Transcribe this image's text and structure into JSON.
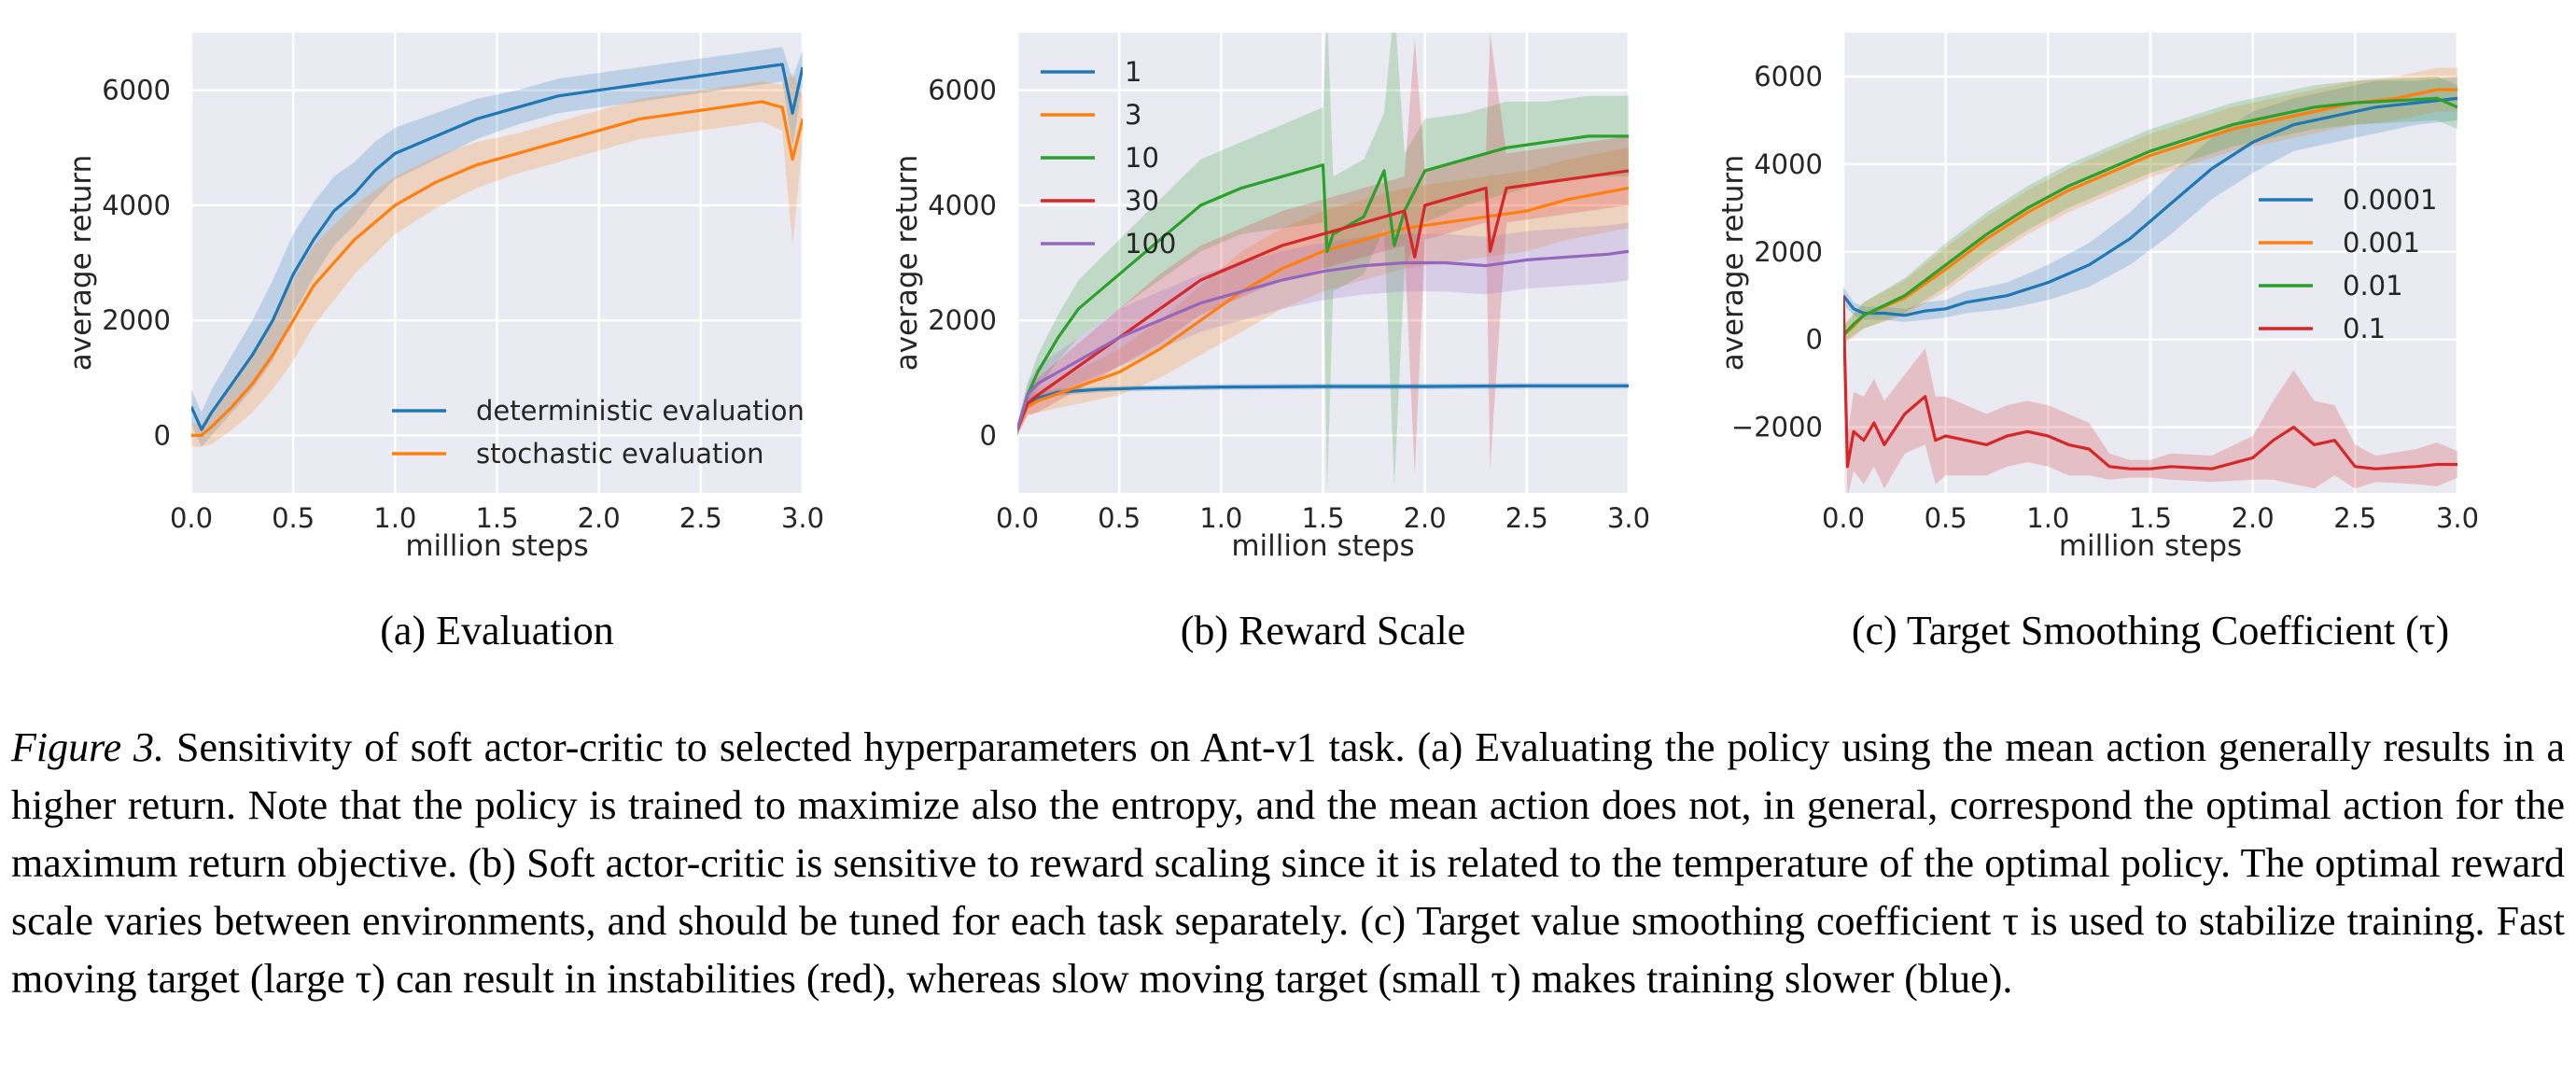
{
  "figure_label": "Figure 3.",
  "caption": {
    "text": "Sensitivity of soft actor-critic to selected hyperparameters on Ant-v1 task. (a) Evaluating the policy using the mean action generally results in a higher return. Note that the policy is trained to maximize also the entropy, and the mean action does not, in general, correspond the optimal action for the maximum return objective. (b) Soft actor-critic is sensitive to reward scaling since it is related to the temperature of the optimal policy. The optimal reward scale varies between environments, and should be tuned for each task separately. (c) Target value smoothing coefficient τ is used to stabilize training. Fast moving target (large τ) can result in instabilities (red), whereas slow moving target (small τ) makes training slower (blue)."
  },
  "colors": {
    "blue": "#1f77b4",
    "orange": "#ff7f0e",
    "green": "#2ca02c",
    "red": "#d62728",
    "purple": "#9467bd",
    "plot_bg": "#eaeaf2",
    "grid": "#ffffff"
  },
  "chart_data": [
    {
      "id": "a",
      "type": "line",
      "subcaption": "(a) Evaluation",
      "xlabel": "million steps",
      "ylabel": "average return",
      "xlim": [
        0,
        3.0
      ],
      "ylim": [
        -1000,
        7000
      ],
      "xticks": [
        0.0,
        0.5,
        1.0,
        1.5,
        2.0,
        2.5,
        3.0
      ],
      "xtick_labels": [
        "0.0",
        "0.5",
        "1.0",
        "1.5",
        "2.0",
        "2.5",
        "3.0"
      ],
      "yticks": [
        0,
        2000,
        4000,
        6000
      ],
      "ytick_labels": [
        "0",
        "2000",
        "4000",
        "6000"
      ],
      "grid": true,
      "legend_position": "lower-right",
      "series": [
        {
          "name": "deterministic evaluation",
          "color": "blue",
          "x": [
            0,
            0.05,
            0.1,
            0.2,
            0.3,
            0.4,
            0.5,
            0.6,
            0.7,
            0.8,
            0.9,
            1.0,
            1.2,
            1.4,
            1.6,
            1.8,
            2.0,
            2.2,
            2.4,
            2.6,
            2.8,
            2.9,
            2.95,
            3.0
          ],
          "y": [
            500,
            100,
            400,
            900,
            1400,
            2000,
            2800,
            3400,
            3900,
            4200,
            4600,
            4900,
            5200,
            5500,
            5700,
            5900,
            6000,
            6100,
            6200,
            6300,
            6400,
            6450,
            5600,
            6400
          ],
          "spread": [
            300,
            300,
            400,
            500,
            600,
            700,
            700,
            650,
            600,
            550,
            500,
            450,
            400,
            350,
            300,
            300,
            300,
            300,
            300,
            300,
            300,
            300,
            600,
            300
          ]
        },
        {
          "name": "stochastic evaluation",
          "color": "orange",
          "x": [
            0,
            0.05,
            0.1,
            0.2,
            0.3,
            0.4,
            0.5,
            0.6,
            0.7,
            0.8,
            0.9,
            1.0,
            1.2,
            1.4,
            1.6,
            1.8,
            2.0,
            2.2,
            2.4,
            2.6,
            2.8,
            2.9,
            2.95,
            3.0
          ],
          "y": [
            0,
            0,
            150,
            500,
            900,
            1400,
            2000,
            2600,
            3000,
            3400,
            3700,
            4000,
            4400,
            4700,
            4900,
            5100,
            5300,
            5500,
            5600,
            5700,
            5800,
            5700,
            4800,
            5500
          ],
          "spread": [
            200,
            200,
            300,
            400,
            500,
            600,
            700,
            700,
            650,
            600,
            550,
            500,
            450,
            400,
            350,
            350,
            350,
            350,
            350,
            350,
            350,
            400,
            1500,
            400
          ]
        }
      ]
    },
    {
      "id": "b",
      "type": "line",
      "subcaption": "(b) Reward Scale",
      "xlabel": "million steps",
      "ylabel": "average return",
      "xlim": [
        0,
        3.0
      ],
      "ylim": [
        -1000,
        7000
      ],
      "xticks": [
        0.0,
        0.5,
        1.0,
        1.5,
        2.0,
        2.5,
        3.0
      ],
      "xtick_labels": [
        "0.0",
        "0.5",
        "1.0",
        "1.5",
        "2.0",
        "2.5",
        "3.0"
      ],
      "yticks": [
        0,
        2000,
        4000,
        6000
      ],
      "ytick_labels": [
        "0",
        "2000",
        "4000",
        "6000"
      ],
      "grid": true,
      "legend_position": "upper-left",
      "series": [
        {
          "name": "1",
          "color": "blue",
          "x": [
            0,
            0.05,
            0.1,
            0.2,
            0.4,
            0.6,
            0.8,
            1.0,
            1.5,
            2.0,
            2.5,
            3.0
          ],
          "y": [
            100,
            550,
            650,
            750,
            800,
            820,
            830,
            840,
            850,
            850,
            860,
            860
          ],
          "spread": [
            100,
            100,
            80,
            60,
            50,
            50,
            50,
            50,
            50,
            50,
            50,
            50
          ]
        },
        {
          "name": "3",
          "color": "orange",
          "x": [
            0,
            0.05,
            0.1,
            0.3,
            0.5,
            0.7,
            0.9,
            1.1,
            1.3,
            1.5,
            1.7,
            1.9,
            2.1,
            2.3,
            2.5,
            2.7,
            3.0
          ],
          "y": [
            100,
            500,
            600,
            850,
            1100,
            1500,
            2000,
            2500,
            2900,
            3200,
            3400,
            3600,
            3700,
            3800,
            3900,
            4100,
            4300
          ],
          "spread": [
            100,
            150,
            200,
            300,
            400,
            500,
            600,
            700,
            700,
            700,
            700,
            700,
            700,
            700,
            700,
            700,
            700
          ]
        },
        {
          "name": "10",
          "color": "green",
          "x": [
            0,
            0.05,
            0.1,
            0.2,
            0.3,
            0.5,
            0.7,
            0.9,
            1.1,
            1.3,
            1.5,
            1.52,
            1.55,
            1.7,
            1.8,
            1.85,
            1.9,
            2.0,
            2.2,
            2.4,
            2.6,
            2.8,
            3.0
          ],
          "y": [
            100,
            700,
            1100,
            1700,
            2200,
            2800,
            3400,
            4000,
            4300,
            4500,
            4700,
            3200,
            3500,
            3800,
            4600,
            3300,
            3900,
            4600,
            4800,
            5000,
            5100,
            5200,
            5200
          ],
          "spread": [
            100,
            200,
            300,
            400,
            500,
            600,
            700,
            800,
            800,
            900,
            1000,
            4200,
            1000,
            1000,
            1000,
            4200,
            1000,
            900,
            800,
            800,
            700,
            700,
            700
          ]
        },
        {
          "name": "30",
          "color": "red",
          "x": [
            0,
            0.05,
            0.1,
            0.3,
            0.5,
            0.7,
            0.9,
            1.1,
            1.3,
            1.5,
            1.7,
            1.9,
            1.95,
            2.0,
            2.1,
            2.2,
            2.3,
            2.32,
            2.4,
            2.6,
            2.8,
            3.0
          ],
          "y": [
            100,
            550,
            700,
            1200,
            1700,
            2200,
            2700,
            3000,
            3300,
            3500,
            3700,
            3900,
            3100,
            4000,
            4100,
            4200,
            4300,
            3200,
            4300,
            4400,
            4500,
            4600
          ],
          "spread": [
            100,
            200,
            300,
            400,
            500,
            600,
            600,
            600,
            600,
            600,
            600,
            600,
            3800,
            600,
            600,
            600,
            600,
            3800,
            600,
            600,
            600,
            600
          ]
        },
        {
          "name": "100",
          "color": "purple",
          "x": [
            0,
            0.05,
            0.1,
            0.3,
            0.5,
            0.7,
            0.9,
            1.1,
            1.3,
            1.5,
            1.7,
            1.9,
            2.1,
            2.3,
            2.5,
            2.7,
            2.9,
            3.0
          ],
          "y": [
            100,
            700,
            900,
            1300,
            1700,
            2000,
            2300,
            2500,
            2700,
            2850,
            2950,
            3000,
            3000,
            2950,
            3050,
            3100,
            3150,
            3200
          ],
          "spread": [
            100,
            200,
            300,
            400,
            500,
            500,
            500,
            500,
            500,
            500,
            500,
            500,
            500,
            500,
            500,
            500,
            500,
            500
          ]
        }
      ]
    },
    {
      "id": "c",
      "type": "line",
      "subcaption": "(c) Target Smoothing Coefficient (τ)",
      "xlabel": "million steps",
      "ylabel": "average return",
      "xlim": [
        0,
        3.0
      ],
      "ylim": [
        -3500,
        7000
      ],
      "xticks": [
        0.0,
        0.5,
        1.0,
        1.5,
        2.0,
        2.5,
        3.0
      ],
      "xtick_labels": [
        "0.0",
        "0.5",
        "1.0",
        "1.5",
        "2.0",
        "2.5",
        "3.0"
      ],
      "yticks": [
        -2000,
        0,
        2000,
        4000,
        6000
      ],
      "ytick_labels": [
        "−2000",
        "0",
        "2000",
        "4000",
        "6000"
      ],
      "grid": true,
      "legend_position": "center-right",
      "series": [
        {
          "name": "0.0001",
          "color": "blue",
          "x": [
            0,
            0.05,
            0.1,
            0.2,
            0.3,
            0.4,
            0.5,
            0.6,
            0.8,
            1.0,
            1.2,
            1.4,
            1.6,
            1.8,
            2.0,
            2.2,
            2.4,
            2.6,
            2.8,
            3.0
          ],
          "y": [
            1000,
            700,
            600,
            600,
            550,
            650,
            700,
            850,
            1000,
            1300,
            1700,
            2300,
            3100,
            3900,
            4500,
            4900,
            5100,
            5300,
            5400,
            5500
          ],
          "spread": [
            200,
            150,
            150,
            150,
            150,
            200,
            200,
            250,
            300,
            400,
            500,
            600,
            700,
            700,
            700,
            600,
            600,
            600,
            500,
            500
          ]
        },
        {
          "name": "0.001",
          "color": "orange",
          "x": [
            0,
            0.05,
            0.1,
            0.3,
            0.5,
            0.7,
            0.9,
            1.1,
            1.3,
            1.5,
            1.7,
            1.9,
            2.1,
            2.3,
            2.5,
            2.7,
            2.9,
            3.0
          ],
          "y": [
            100,
            300,
            550,
            950,
            1600,
            2300,
            2900,
            3400,
            3800,
            4200,
            4500,
            4800,
            5000,
            5200,
            5400,
            5500,
            5700,
            5700
          ],
          "spread": [
            200,
            250,
            300,
            400,
            500,
            500,
            500,
            500,
            500,
            500,
            500,
            500,
            500,
            500,
            500,
            500,
            500,
            500
          ]
        },
        {
          "name": "0.01",
          "color": "green",
          "x": [
            0,
            0.05,
            0.1,
            0.3,
            0.5,
            0.7,
            0.9,
            1.1,
            1.3,
            1.5,
            1.7,
            1.9,
            2.1,
            2.3,
            2.5,
            2.7,
            2.9,
            3.0
          ],
          "y": [
            100,
            350,
            550,
            1000,
            1700,
            2400,
            3000,
            3500,
            3900,
            4300,
            4600,
            4900,
            5100,
            5300,
            5400,
            5450,
            5500,
            5300
          ],
          "spread": [
            200,
            250,
            300,
            400,
            500,
            500,
            500,
            500,
            500,
            500,
            500,
            500,
            500,
            500,
            500,
            500,
            500,
            500
          ]
        },
        {
          "name": "0.1",
          "color": "red",
          "x": [
            0,
            0.02,
            0.05,
            0.1,
            0.15,
            0.2,
            0.3,
            0.4,
            0.45,
            0.5,
            0.6,
            0.7,
            0.8,
            0.9,
            1.0,
            1.1,
            1.2,
            1.3,
            1.4,
            1.5,
            1.6,
            1.8,
            2.0,
            2.1,
            2.2,
            2.3,
            2.4,
            2.5,
            2.6,
            2.8,
            2.9,
            3.0
          ],
          "y": [
            1000,
            -2900,
            -2100,
            -2300,
            -1900,
            -2400,
            -1700,
            -1300,
            -2300,
            -2200,
            -2300,
            -2400,
            -2200,
            -2100,
            -2200,
            -2400,
            -2500,
            -2900,
            -2950,
            -2950,
            -2900,
            -2950,
            -2700,
            -2300,
            -2000,
            -2400,
            -2300,
            -2900,
            -2950,
            -2900,
            -2850,
            -2850
          ],
          "spread": [
            400,
            700,
            900,
            1000,
            1000,
            1000,
            900,
            1100,
            1000,
            900,
            800,
            700,
            700,
            700,
            700,
            700,
            600,
            300,
            200,
            200,
            300,
            300,
            500,
            900,
            1300,
            1000,
            800,
            500,
            300,
            400,
            500,
            300
          ]
        }
      ]
    }
  ]
}
